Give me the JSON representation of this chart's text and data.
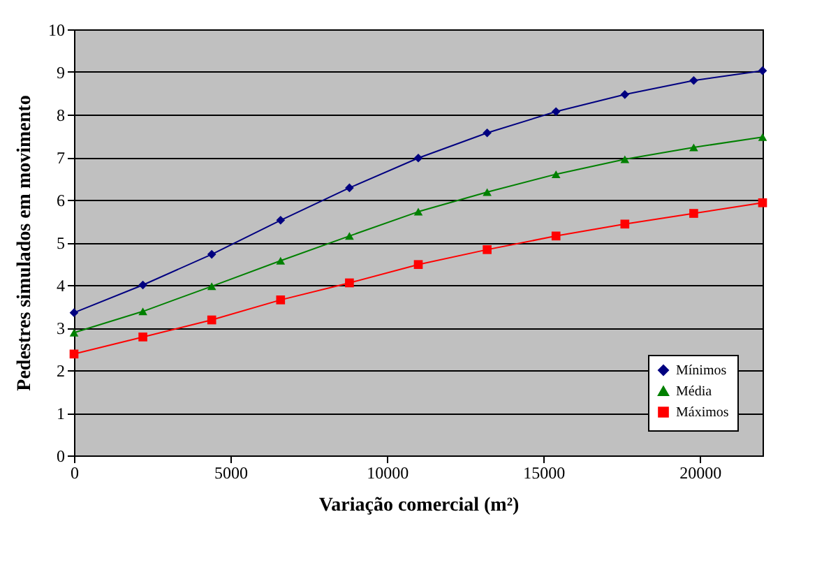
{
  "chart_data": {
    "type": "line",
    "xlabel": "Variação comercial (m²)",
    "ylabel": "Pedestres simulados em movimento",
    "x": [
      0,
      2200,
      4400,
      6600,
      8800,
      11000,
      13200,
      15400,
      17600,
      19800,
      22000
    ],
    "xlim": [
      0,
      22000
    ],
    "xticks": [
      0,
      5000,
      10000,
      15000,
      20000
    ],
    "ylim": [
      0,
      10
    ],
    "yticks": [
      0,
      1,
      2,
      3,
      4,
      5,
      6,
      7,
      8,
      9,
      10
    ],
    "grid": "y",
    "legend": "bottom right",
    "line_style": "solid",
    "series": [
      {
        "name": "Mínimos",
        "color": "#000080",
        "marker": "diamond",
        "values": [
          3.35,
          4.0,
          4.72,
          5.52,
          6.28,
          6.98,
          7.57,
          8.07,
          8.47,
          8.8,
          9.03
        ]
      },
      {
        "name": "Média",
        "color": "#008000",
        "marker": "triangle",
        "values": [
          2.88,
          3.38,
          3.97,
          4.57,
          5.15,
          5.72,
          6.18,
          6.6,
          6.95,
          7.23,
          7.47
        ]
      },
      {
        "name": "Máximos",
        "color": "#ff0000",
        "marker": "square",
        "values": [
          2.38,
          2.78,
          3.18,
          3.65,
          4.05,
          4.48,
          4.83,
          5.15,
          5.43,
          5.68,
          5.93
        ]
      }
    ]
  }
}
